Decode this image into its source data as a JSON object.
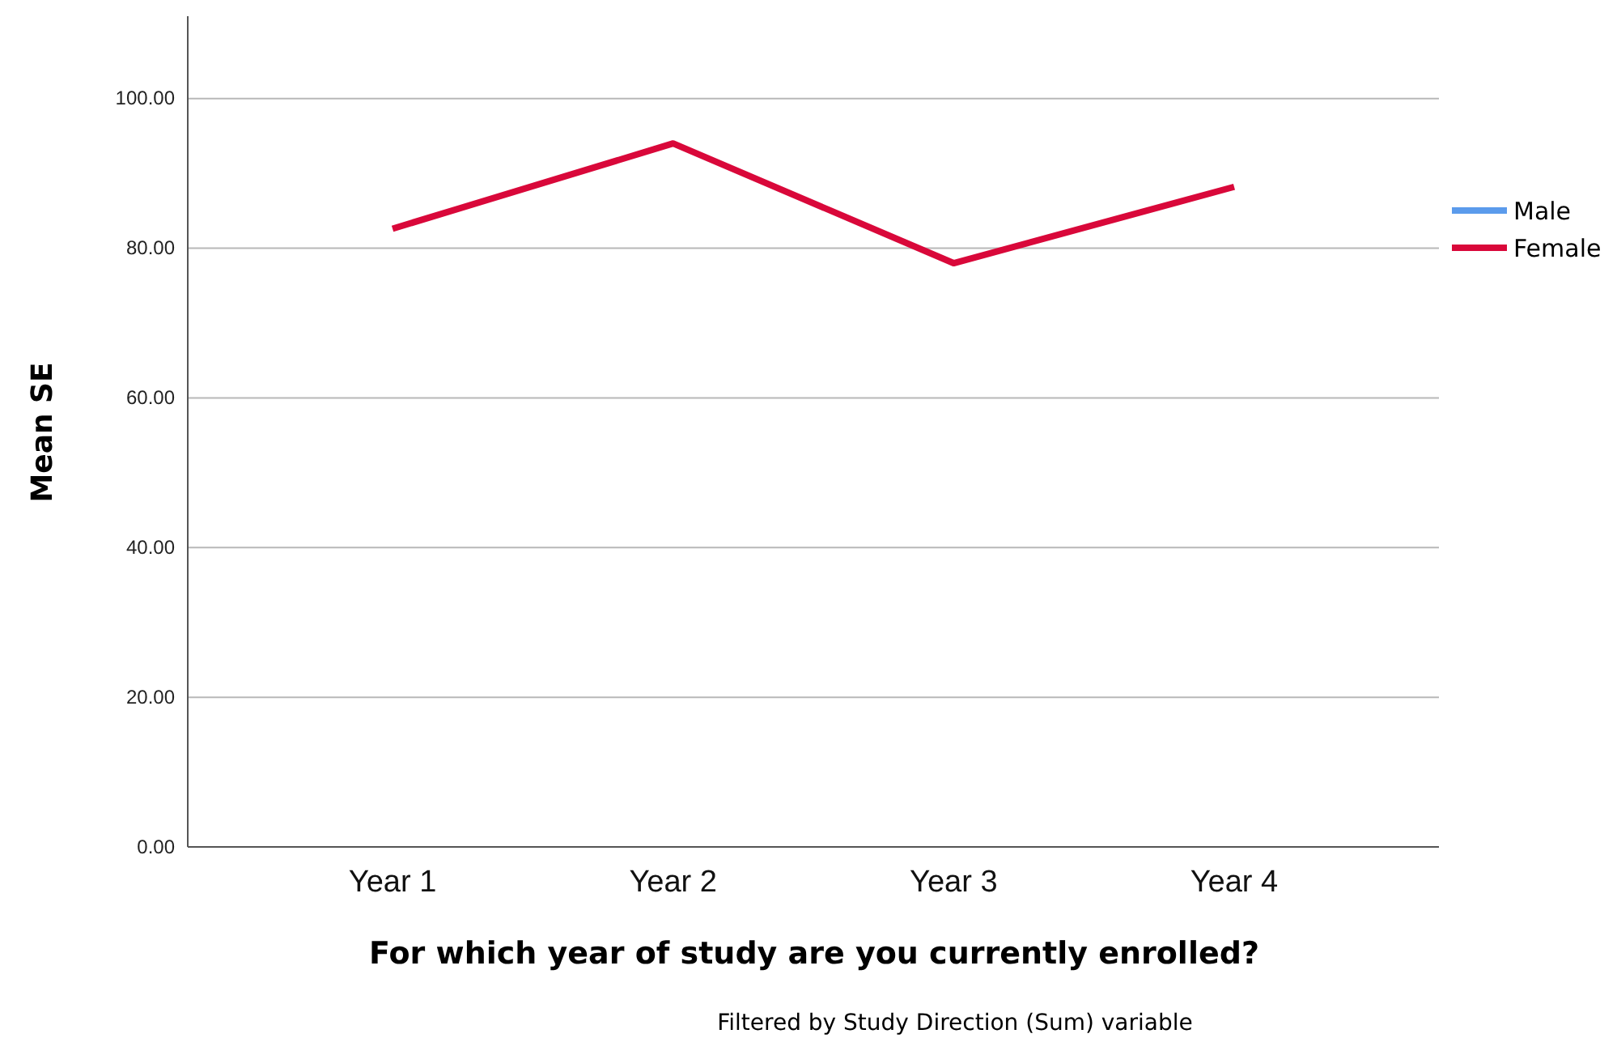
{
  "chart_data": {
    "type": "line",
    "xlabel": "For which year of study are you currently enrolled?",
    "ylabel": "Mean SE",
    "categories": [
      "Year 1",
      "Year 2",
      "Year 3",
      "Year 4"
    ],
    "series": [
      {
        "name": "Male",
        "color": "#5b9bec",
        "values": [
          null,
          null,
          null,
          null
        ]
      },
      {
        "name": "Female",
        "color": "#d9083a",
        "values": [
          82.6,
          94.0,
          78.0,
          88.2
        ]
      }
    ],
    "ylim": [
      0,
      111
    ],
    "yticks": [
      {
        "value": 0,
        "label": "0.00"
      },
      {
        "value": 20,
        "label": "20.00"
      },
      {
        "value": 40,
        "label": "40.00"
      },
      {
        "value": 60,
        "label": "60.00"
      },
      {
        "value": 80,
        "label": "80.00"
      },
      {
        "value": 100,
        "label": "100.00"
      }
    ],
    "grid": "y",
    "legend": "right",
    "line_style": "solid",
    "marker": "none",
    "annotations": [
      "Filtered by Study Direction (Sum) variable"
    ]
  }
}
